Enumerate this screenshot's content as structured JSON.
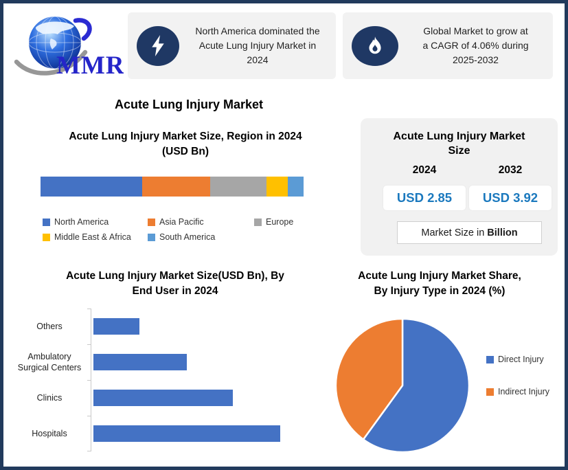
{
  "brand": {
    "logo_text": "MMR"
  },
  "banners": [
    {
      "icon": "lightning-bolt",
      "lines": [
        "North America dominated the",
        "Acute Lung Injury Market in",
        "2024"
      ]
    },
    {
      "icon": "flame",
      "lines": [
        "Global Market to grow at",
        "a CAGR of 4.06% during",
        "2025-2032"
      ]
    }
  ],
  "page_title": "Acute Lung Injury Market",
  "market_size_panel": {
    "title_lines": [
      "Acute Lung Injury Market",
      "Size"
    ],
    "years": [
      "2024",
      "2032"
    ],
    "values": [
      "USD 2.85",
      "USD 3.92"
    ],
    "footnote_prefix": "Market Size in ",
    "footnote_bold": "Billion",
    "value_color": "#1B79BE",
    "panel_bg": "#F1F1F1"
  },
  "chart_data": [
    {
      "id": "region-stacked-bar",
      "type": "bar",
      "variant": "stacked-horizontal",
      "title": "Acute Lung Injury Market Size, Region in 2024 (USD Bn)",
      "title_lines": [
        "Acute Lung Injury Market Size, Region in 2024",
        "(USD Bn)"
      ],
      "categories": [
        "North America",
        "Asia Pacific",
        "Europe",
        "Middle East & Africa",
        "South America"
      ],
      "share_pct": [
        38.6,
        25.8,
        21.4,
        8.1,
        6.1
      ],
      "colors": [
        "#4472C4",
        "#ED7D31",
        "#A6A6A6",
        "#FFC000",
        "#5B9BD5"
      ],
      "legend_position": "bottom",
      "axis_labels_shown": false
    },
    {
      "id": "end-user-bar",
      "type": "bar",
      "variant": "horizontal",
      "title": "Acute Lung Injury Market Size(USD Bn), By End User in 2024",
      "title_lines": [
        "Acute Lung Injury Market Size(USD Bn), By",
        "End User in 2024"
      ],
      "categories": [
        "Others",
        "Ambulatory Surgical Centers",
        "Clinics",
        "Hospitals"
      ],
      "relative_values_pct": [
        24.8,
        50.0,
        74.8,
        100.0
      ],
      "bar_color": "#4472C4",
      "axis_labels_shown": false,
      "grid": false
    },
    {
      "id": "injury-type-pie",
      "type": "pie",
      "title": "Acute Lung Injury Market Share, By Injury Type in 2024 (%)",
      "title_lines": [
        "Acute Lung Injury Market Share,",
        "By Injury Type in 2024 (%)"
      ],
      "start_angle_deg": 0,
      "slices": [
        {
          "label": "Direct Injury",
          "value_pct": 60,
          "color": "#4472C4"
        },
        {
          "label": "Indirect Injury",
          "value_pct": 40,
          "color": "#ED7D31"
        }
      ],
      "legend_position": "right"
    }
  ],
  "colors": {
    "border_navy": "#213A5C",
    "icon_navy": "#1F3864",
    "banner_bg": "#F2F2F2",
    "logo_blue": "#2525C9"
  }
}
